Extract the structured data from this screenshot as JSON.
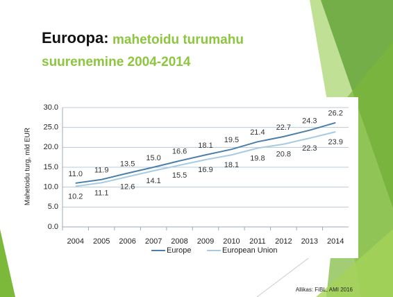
{
  "chart_data": {
    "type": "line",
    "title": "Euroopa:",
    "subtitle": [
      "mahetoidu turumahu",
      "suurenemine 2004-2014"
    ],
    "ylabel": "Mahetoidu turg, mld EUR",
    "source": "Allikas: FiBL, AMI 2016",
    "categories": [
      "2004",
      "2005",
      "2006",
      "2007",
      "2008",
      "2009",
      "2010",
      "2011",
      "2012",
      "2013",
      "2014"
    ],
    "series": [
      {
        "name": "Europe",
        "color": "#4a7eab",
        "values": [
          11.0,
          11.9,
          13.5,
          15.0,
          16.6,
          18.1,
          19.5,
          21.4,
          22.7,
          24.3,
          26.2
        ],
        "value_labels": [
          "11.0",
          "11.9",
          "13.5",
          "15.0",
          "16.6",
          "18.1",
          "19.5",
          "21.4",
          "22.7",
          "24.3",
          "26.2"
        ]
      },
      {
        "name": "European Union",
        "color": "#a7cbe2",
        "values": [
          10.2,
          11.1,
          12.6,
          14.1,
          15.5,
          16.9,
          18.1,
          19.8,
          20.8,
          22.3,
          23.9
        ],
        "value_labels": [
          "10.2",
          "11.1",
          "12.6",
          "14.1",
          "15.5",
          "16.9",
          "18.1",
          "19.8",
          "20.8",
          "22.3",
          "23.9"
        ]
      }
    ],
    "ylim": [
      0,
      30
    ],
    "yticks": [
      {
        "value": 0,
        "label": "0.0"
      },
      {
        "value": 5,
        "label": "5.0"
      },
      {
        "value": 10,
        "label": "10.0"
      },
      {
        "value": 15,
        "label": "15.0"
      },
      {
        "value": 20,
        "label": "20.0"
      },
      {
        "value": 25,
        "label": "25.0"
      },
      {
        "value": 30,
        "label": "30.0"
      }
    ],
    "grid": true,
    "legend": "bottom"
  }
}
